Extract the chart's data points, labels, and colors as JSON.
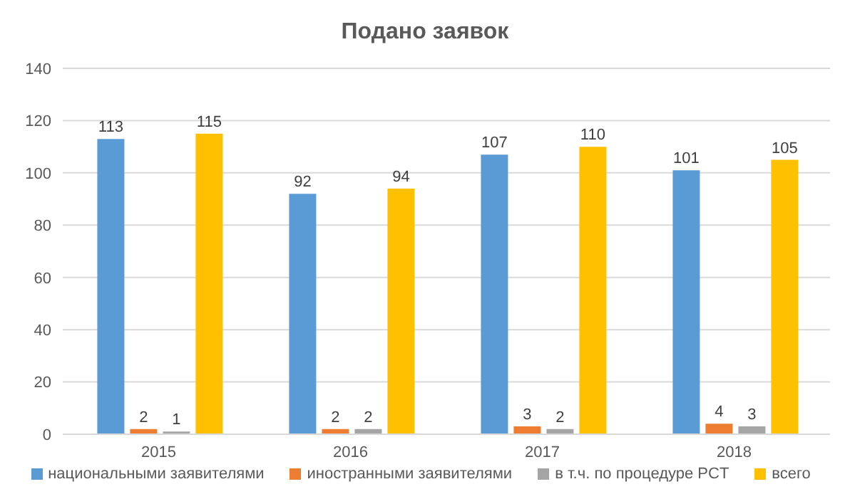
{
  "chart_data": {
    "type": "bar",
    "title": "Подано заявок",
    "categories": [
      "2015",
      "2016",
      "2017",
      "2018"
    ],
    "series": [
      {
        "name": "национальными заявителями",
        "color": "#5b9bd5",
        "values": [
          113,
          92,
          107,
          101
        ]
      },
      {
        "name": "иностранными заявителями",
        "color": "#ed7d31",
        "values": [
          2,
          2,
          3,
          4
        ]
      },
      {
        "name": "в т.ч. по процедуре PCT",
        "color": "#a5a5a5",
        "values": [
          1,
          2,
          2,
          3
        ]
      },
      {
        "name": "всего",
        "color": "#ffc000",
        "values": [
          115,
          94,
          110,
          105
        ]
      }
    ],
    "ylim": [
      0,
      140
    ],
    "yticks": [
      0,
      20,
      40,
      60,
      80,
      100,
      120,
      140
    ],
    "grid": "y",
    "legend": "bottom",
    "data_labels": true
  }
}
